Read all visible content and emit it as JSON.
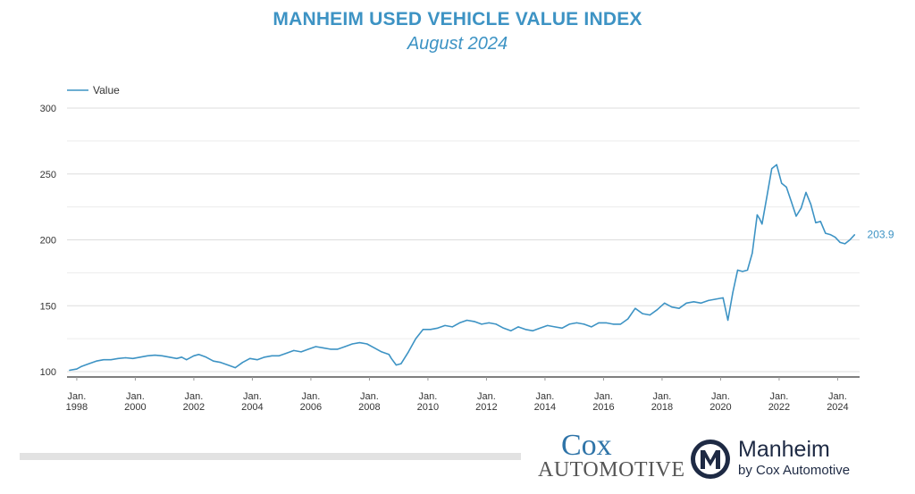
{
  "header": {
    "title": "MANHEIM USED VEHICLE VALUE INDEX",
    "subtitle": "August 2024"
  },
  "colors": {
    "line": "#3d93c4",
    "title": "#3d93c4",
    "grid": "#dddddd",
    "baseline": "#333333"
  },
  "chart_data": {
    "type": "line",
    "title": "MANHEIM USED VEHICLE VALUE INDEX",
    "subtitle": "August 2024",
    "legend": {
      "entries": [
        "Value"
      ],
      "placement": "top-left"
    },
    "grid": true,
    "ylim": [
      100,
      300
    ],
    "yticks": [
      100,
      150,
      200,
      250,
      300
    ],
    "xlim": [
      "1997-09",
      "2024-10"
    ],
    "xticks": [
      {
        "x": "1998-01",
        "line1": "Jan.",
        "line2": "1998"
      },
      {
        "x": "2000-01",
        "line1": "Jan.",
        "line2": "2000"
      },
      {
        "x": "2002-01",
        "line1": "Jan.",
        "line2": "2002"
      },
      {
        "x": "2004-01",
        "line1": "Jan.",
        "line2": "2004"
      },
      {
        "x": "2006-01",
        "line1": "Jan.",
        "line2": "2006"
      },
      {
        "x": "2008-01",
        "line1": "Jan.",
        "line2": "2008"
      },
      {
        "x": "2010-01",
        "line1": "Jan.",
        "line2": "2010"
      },
      {
        "x": "2012-01",
        "line1": "Jan.",
        "line2": "2012"
      },
      {
        "x": "2014-01",
        "line1": "Jan.",
        "line2": "2014"
      },
      {
        "x": "2016-01",
        "line1": "Jan.",
        "line2": "2016"
      },
      {
        "x": "2018-01",
        "line1": "Jan.",
        "line2": "2018"
      },
      {
        "x": "2020-01",
        "line1": "Jan.",
        "line2": "2020"
      },
      {
        "x": "2022-01",
        "line1": "Jan.",
        "line2": "2022"
      },
      {
        "x": "2024-01",
        "line1": "Jan.",
        "line2": "2024"
      }
    ],
    "end_label": "203.9",
    "series": [
      {
        "name": "Value",
        "points": [
          [
            "1997-10",
            101
          ],
          [
            "1998-01",
            102
          ],
          [
            "1998-03",
            104
          ],
          [
            "1998-06",
            106
          ],
          [
            "1998-09",
            108
          ],
          [
            "1998-12",
            109
          ],
          [
            "1999-03",
            109
          ],
          [
            "1999-06",
            110
          ],
          [
            "1999-09",
            110.5
          ],
          [
            "1999-12",
            110
          ],
          [
            "2000-03",
            111
          ],
          [
            "2000-06",
            112
          ],
          [
            "2000-09",
            112.5
          ],
          [
            "2000-12",
            112
          ],
          [
            "2001-03",
            111
          ],
          [
            "2001-06",
            110
          ],
          [
            "2001-08",
            111
          ],
          [
            "2001-10",
            109
          ],
          [
            "2002-01",
            112
          ],
          [
            "2002-03",
            113
          ],
          [
            "2002-06",
            111
          ],
          [
            "2002-09",
            108
          ],
          [
            "2002-12",
            107
          ],
          [
            "2003-03",
            105
          ],
          [
            "2003-06",
            103
          ],
          [
            "2003-09",
            107
          ],
          [
            "2003-12",
            110
          ],
          [
            "2004-03",
            109
          ],
          [
            "2004-06",
            111
          ],
          [
            "2004-09",
            112
          ],
          [
            "2004-12",
            112
          ],
          [
            "2005-03",
            114
          ],
          [
            "2005-06",
            116
          ],
          [
            "2005-09",
            115
          ],
          [
            "2005-12",
            117
          ],
          [
            "2006-03",
            119
          ],
          [
            "2006-06",
            118
          ],
          [
            "2006-09",
            117
          ],
          [
            "2006-12",
            117
          ],
          [
            "2007-03",
            119
          ],
          [
            "2007-06",
            121
          ],
          [
            "2007-09",
            122
          ],
          [
            "2007-12",
            121
          ],
          [
            "2008-03",
            118
          ],
          [
            "2008-06",
            115
          ],
          [
            "2008-09",
            113
          ],
          [
            "2008-10",
            110
          ],
          [
            "2008-12",
            105
          ],
          [
            "2009-02",
            106
          ],
          [
            "2009-05",
            115
          ],
          [
            "2009-08",
            125
          ],
          [
            "2009-11",
            132
          ],
          [
            "2010-02",
            132
          ],
          [
            "2010-05",
            133
          ],
          [
            "2010-08",
            135
          ],
          [
            "2010-11",
            134
          ],
          [
            "2011-02",
            137
          ],
          [
            "2011-05",
            139
          ],
          [
            "2011-08",
            138
          ],
          [
            "2011-11",
            136
          ],
          [
            "2012-02",
            137
          ],
          [
            "2012-05",
            136
          ],
          [
            "2012-08",
            133
          ],
          [
            "2012-11",
            131
          ],
          [
            "2013-02",
            134
          ],
          [
            "2013-05",
            132
          ],
          [
            "2013-08",
            131
          ],
          [
            "2013-11",
            133
          ],
          [
            "2014-02",
            135
          ],
          [
            "2014-05",
            134
          ],
          [
            "2014-08",
            133
          ],
          [
            "2014-11",
            136
          ],
          [
            "2015-02",
            137
          ],
          [
            "2015-05",
            136
          ],
          [
            "2015-08",
            134
          ],
          [
            "2015-11",
            137
          ],
          [
            "2016-02",
            137
          ],
          [
            "2016-05",
            136
          ],
          [
            "2016-08",
            136
          ],
          [
            "2016-11",
            140
          ],
          [
            "2017-02",
            148
          ],
          [
            "2017-05",
            144
          ],
          [
            "2017-08",
            143
          ],
          [
            "2017-11",
            147
          ],
          [
            "2018-02",
            152
          ],
          [
            "2018-05",
            149
          ],
          [
            "2018-08",
            148
          ],
          [
            "2018-11",
            152
          ],
          [
            "2019-02",
            153
          ],
          [
            "2019-05",
            152
          ],
          [
            "2019-08",
            154
          ],
          [
            "2019-11",
            155
          ],
          [
            "2020-02",
            156
          ],
          [
            "2020-04",
            139
          ],
          [
            "2020-06",
            160
          ],
          [
            "2020-08",
            177
          ],
          [
            "2020-10",
            176
          ],
          [
            "2020-12",
            177
          ],
          [
            "2021-02",
            190
          ],
          [
            "2021-04",
            219
          ],
          [
            "2021-05",
            216
          ],
          [
            "2021-06",
            212
          ],
          [
            "2021-08",
            233
          ],
          [
            "2021-10",
            254
          ],
          [
            "2021-12",
            257
          ],
          [
            "2022-02",
            243
          ],
          [
            "2022-04",
            240
          ],
          [
            "2022-06",
            229
          ],
          [
            "2022-08",
            218
          ],
          [
            "2022-10",
            224
          ],
          [
            "2022-12",
            236
          ],
          [
            "2023-02",
            227
          ],
          [
            "2023-04",
            213
          ],
          [
            "2023-06",
            214
          ],
          [
            "2023-08",
            205
          ],
          [
            "2023-10",
            204
          ],
          [
            "2023-12",
            202
          ],
          [
            "2024-02",
            198
          ],
          [
            "2024-04",
            197
          ],
          [
            "2024-06",
            200
          ],
          [
            "2024-08",
            203.9
          ]
        ]
      }
    ]
  },
  "logos": {
    "cox_line1": "Cox",
    "cox_line2": "AUTOMOTIVE",
    "manheim_name": "Manheim",
    "manheim_sub": "by Cox Automotive",
    "manheim_icon": "manheim-m-icon"
  }
}
